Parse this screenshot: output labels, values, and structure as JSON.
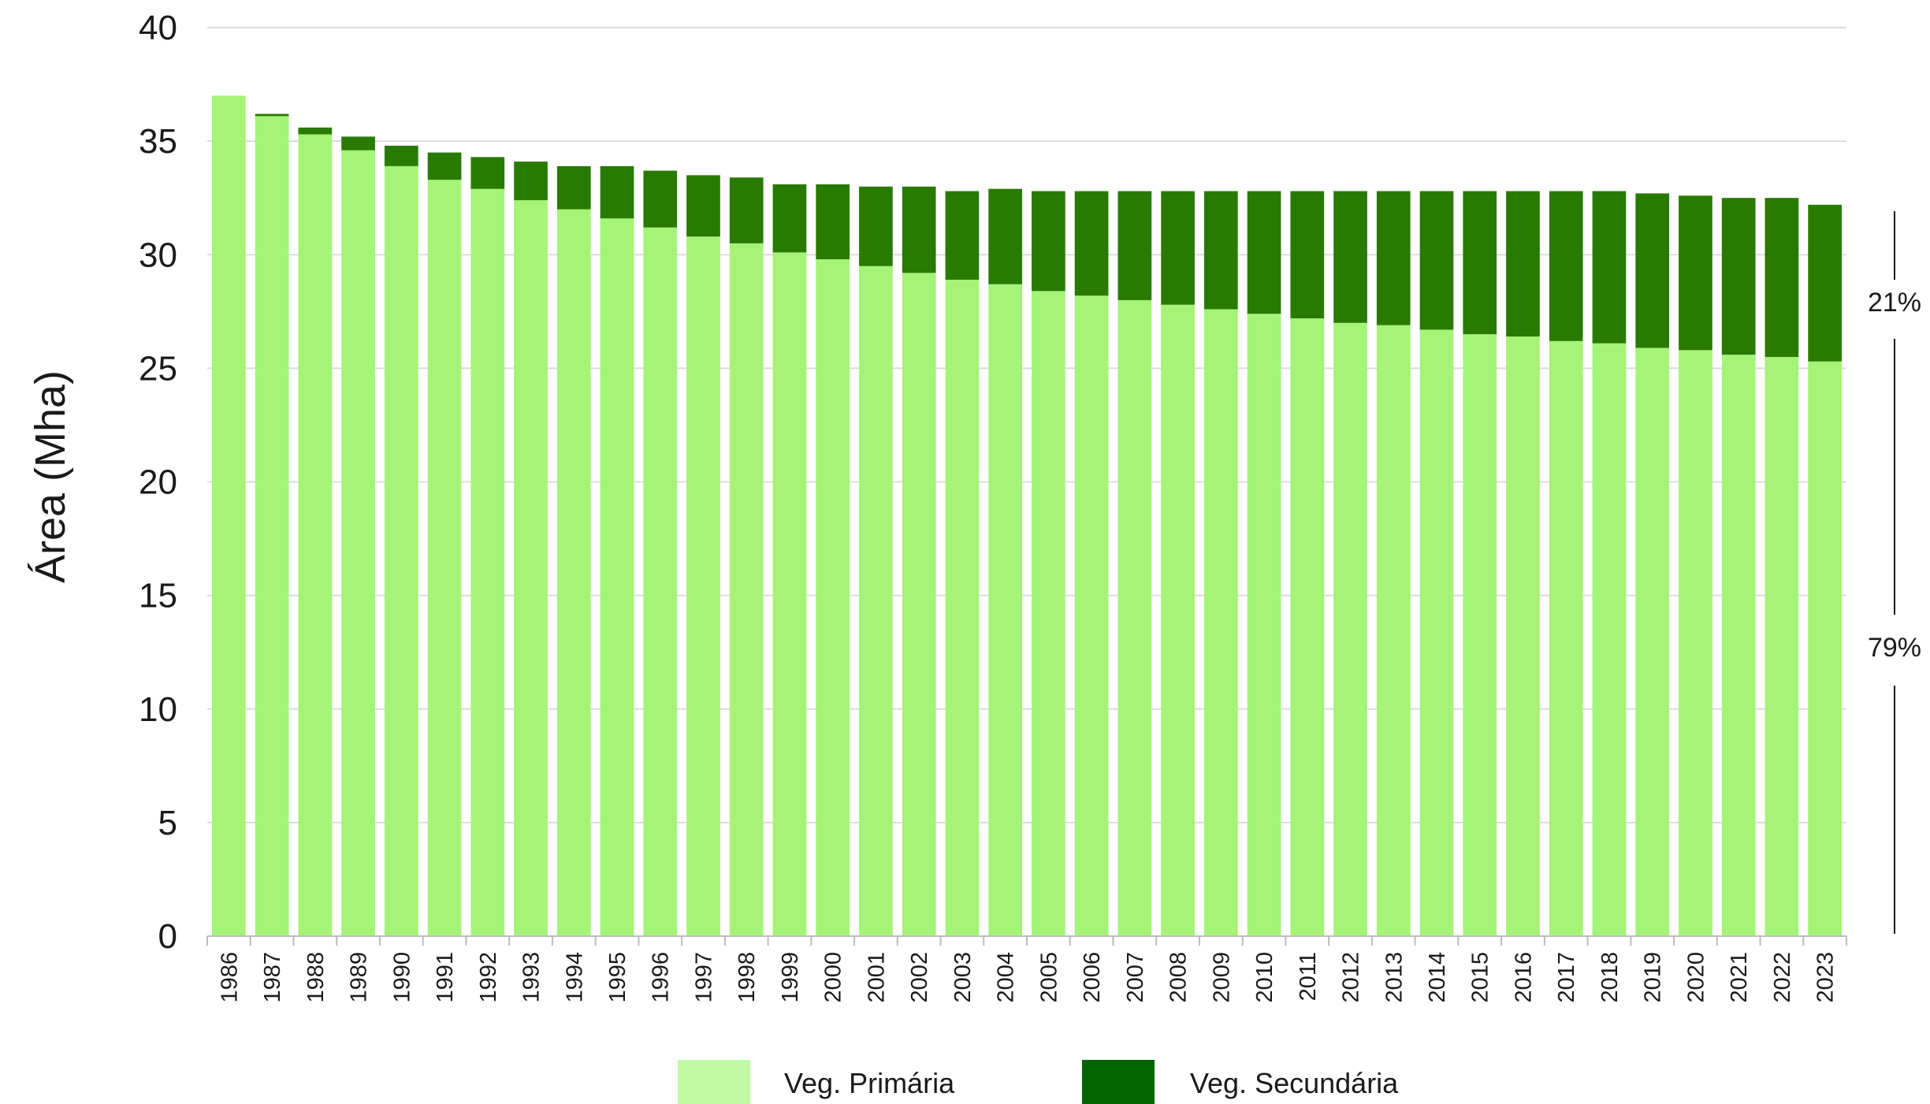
{
  "chart_data": {
    "type": "bar",
    "stacked": true,
    "ylabel": "Área (Mha)",
    "xlabel": "",
    "ylim": [
      0,
      40
    ],
    "yticks": [
      "0",
      "5",
      "10",
      "15",
      "20",
      "25",
      "30",
      "35",
      "40"
    ],
    "grid": true,
    "legend_position": "bottom-center",
    "categories": [
      "1986",
      "1987",
      "1988",
      "1989",
      "1990",
      "1991",
      "1992",
      "1993",
      "1994",
      "1995",
      "1996",
      "1997",
      "1998",
      "1999",
      "2000",
      "2001",
      "2002",
      "2003",
      "2004",
      "2005",
      "2006",
      "2007",
      "2008",
      "2009",
      "2010",
      "2011",
      "2012",
      "2013",
      "2014",
      "2015",
      "2016",
      "2017",
      "2018",
      "2019",
      "2020",
      "2021",
      "2022",
      "2023"
    ],
    "series": [
      {
        "name": "Veg. Primária",
        "color": "#a5f377",
        "values": [
          37.0,
          36.1,
          35.3,
          34.6,
          33.9,
          33.3,
          32.9,
          32.4,
          32.0,
          31.6,
          31.2,
          30.8,
          30.5,
          30.1,
          29.8,
          29.5,
          29.2,
          28.9,
          28.7,
          28.4,
          28.2,
          28.0,
          27.8,
          27.6,
          27.4,
          27.2,
          27.0,
          26.9,
          26.7,
          26.5,
          26.4,
          26.2,
          26.1,
          25.9,
          25.8,
          25.6,
          25.5,
          25.3
        ]
      },
      {
        "name": "Veg. Secundária",
        "color": "#287a00",
        "values": [
          0.0,
          0.1,
          0.3,
          0.6,
          0.9,
          1.2,
          1.4,
          1.7,
          1.9,
          2.3,
          2.5,
          2.7,
          2.9,
          3.0,
          3.3,
          3.5,
          3.8,
          3.9,
          4.2,
          4.4,
          4.6,
          4.8,
          5.0,
          5.2,
          5.4,
          5.6,
          5.8,
          5.9,
          6.1,
          6.3,
          6.4,
          6.6,
          6.7,
          6.8,
          6.8,
          6.9,
          7.0,
          6.9
        ]
      }
    ],
    "annotations": {
      "secondary_share": "21%",
      "primary_share": "79%"
    },
    "legend_swatch_colors": {
      "primary": "#c1f8a3",
      "secondary": "#006400"
    },
    "grid_color": "#dcdcdc"
  }
}
